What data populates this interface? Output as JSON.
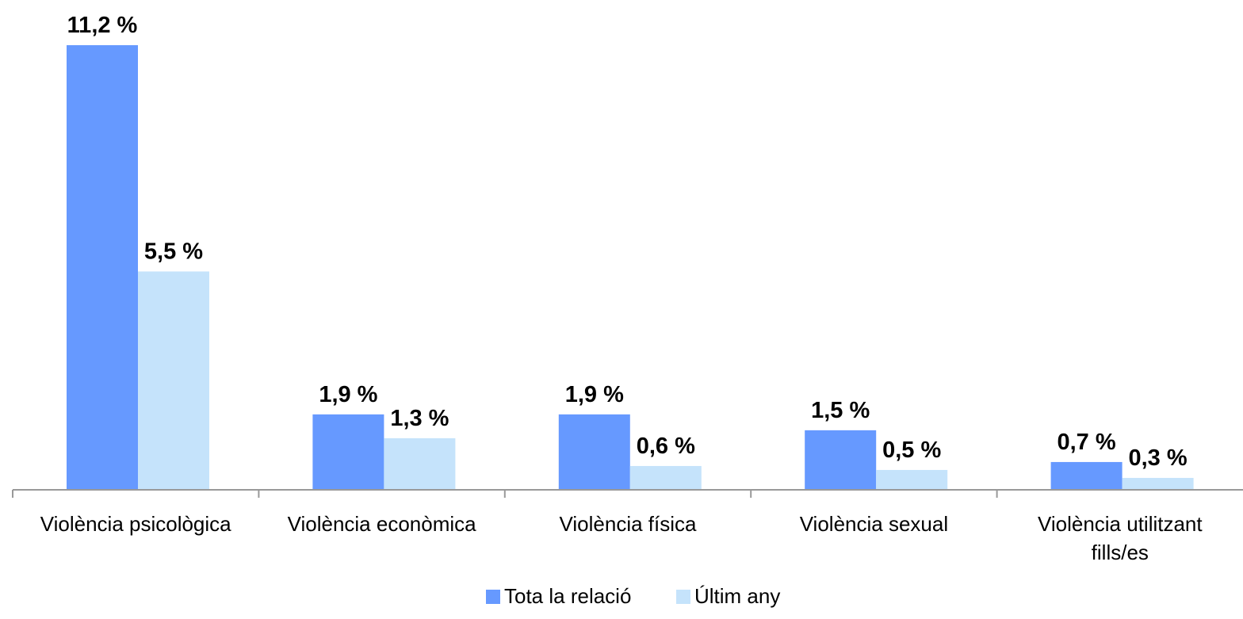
{
  "chart_data": {
    "type": "bar",
    "categories": [
      [
        "Violència psicològica"
      ],
      [
        "Violència econòmica"
      ],
      [
        "Violència física"
      ],
      [
        "Violència sexual"
      ],
      [
        "Violència utilitzant",
        "fills/es"
      ]
    ],
    "series": [
      {
        "name": "Tota la relació",
        "color": "#6699ff",
        "values": [
          11.2,
          1.9,
          1.9,
          1.5,
          0.7
        ],
        "labels": [
          "11,2 %",
          "1,9 %",
          "1,9 %",
          "1,5 %",
          "0,7 %"
        ]
      },
      {
        "name": "Últim any",
        "color": "#c5e3fb",
        "values": [
          5.5,
          1.3,
          0.6,
          0.5,
          0.3
        ],
        "labels": [
          "5,5 %",
          "1,3 %",
          "0,6 %",
          "0,5 %",
          "0,3 %"
        ]
      }
    ],
    "ylim": [
      0,
      11.2
    ],
    "grid": false,
    "legend": "bottom",
    "axis_color": "#999999"
  }
}
